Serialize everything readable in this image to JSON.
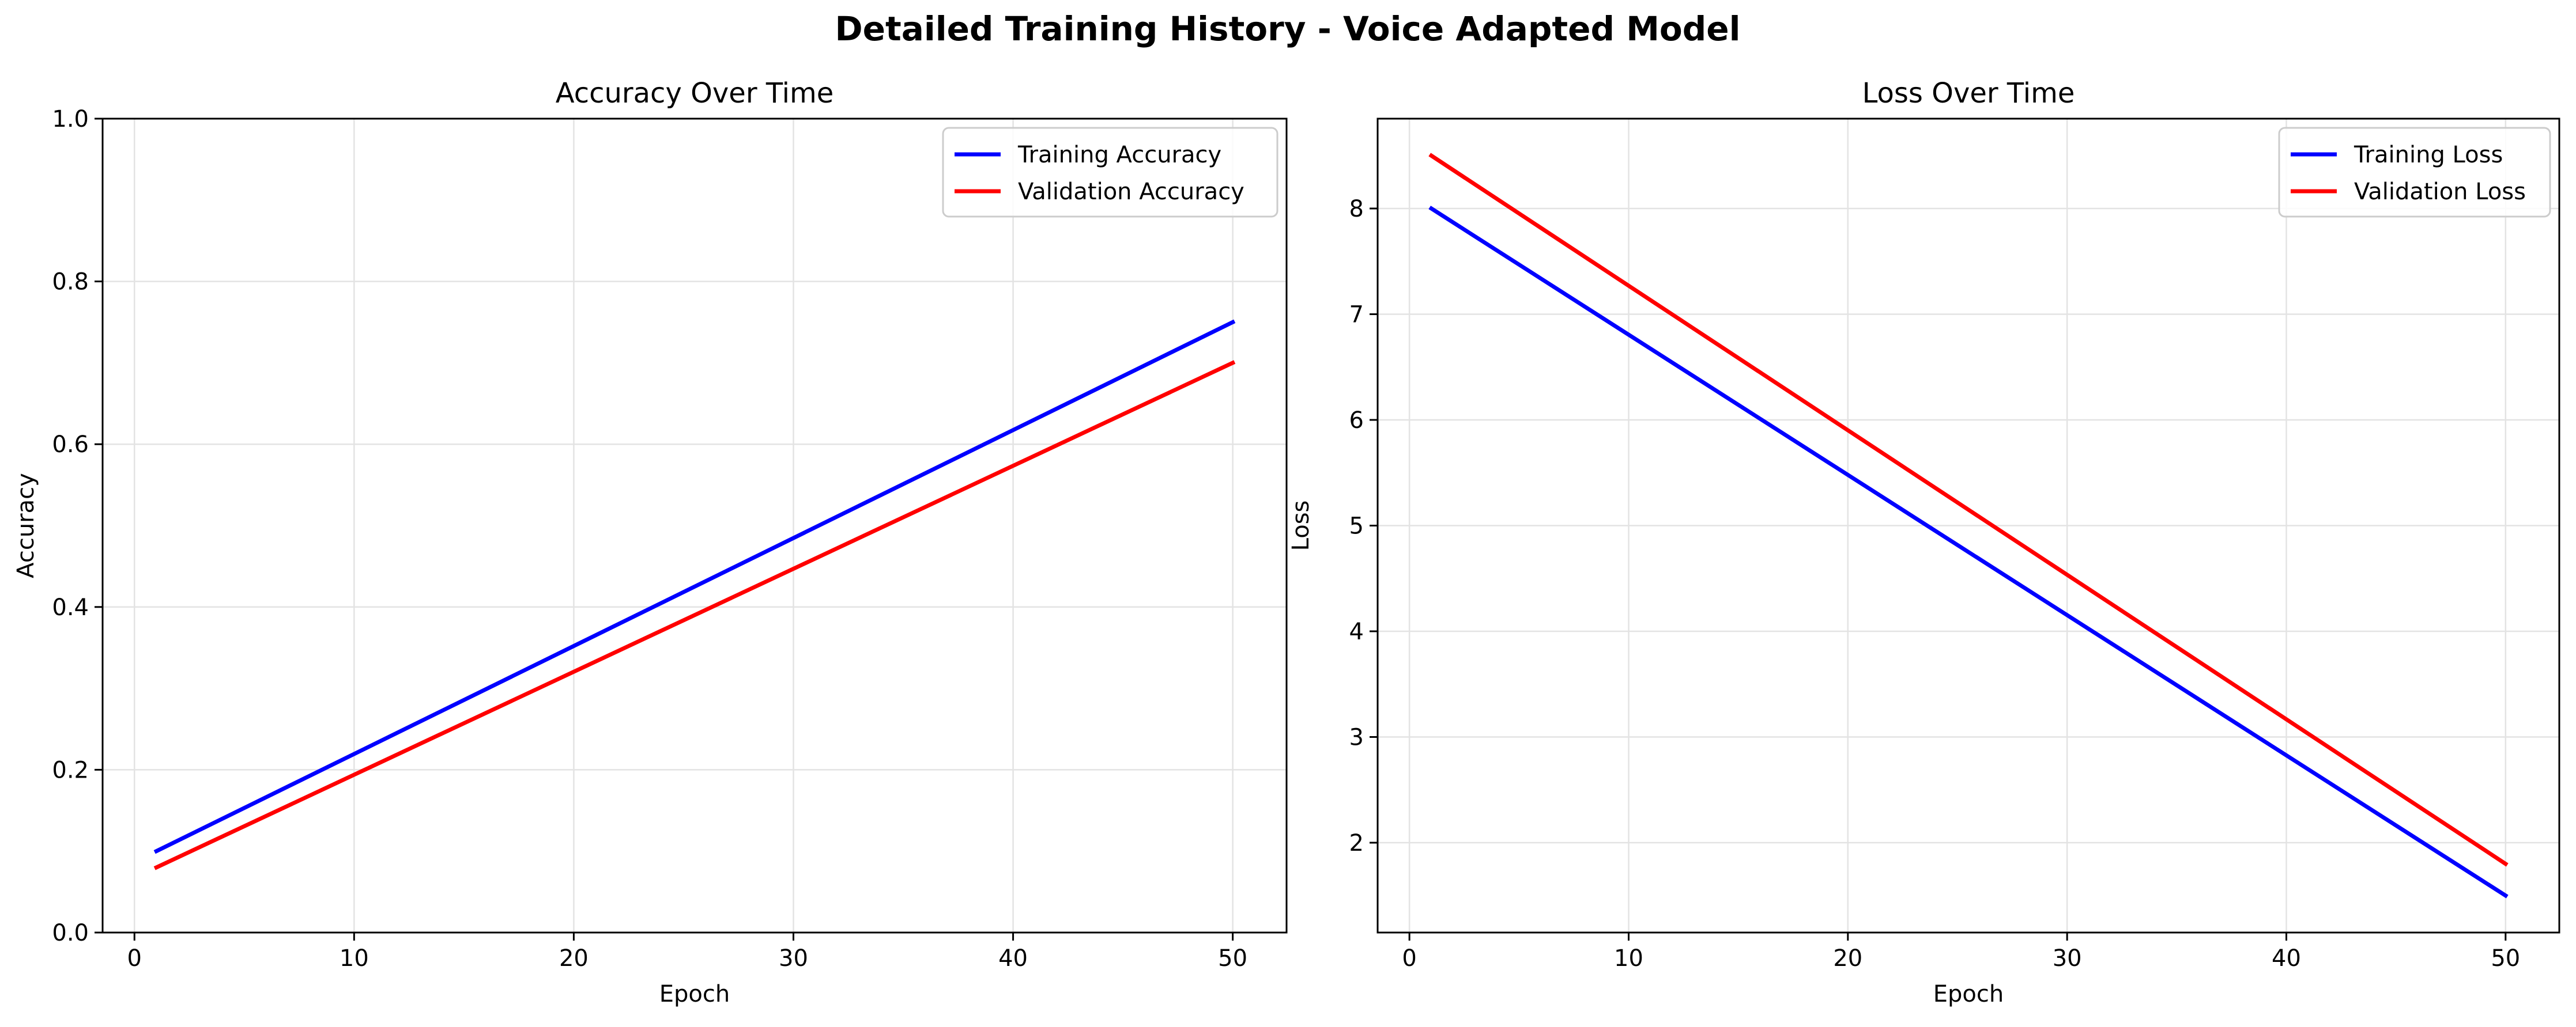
{
  "figure": {
    "suptitle": "Detailed Training History - Voice Adapted Model"
  },
  "chart_data": [
    {
      "type": "line",
      "title": "Accuracy Over Time",
      "xlabel": "Epoch",
      "ylabel": "Accuracy",
      "xlim": [
        -1.45,
        52.45
      ],
      "ylim": [
        0.0,
        1.0
      ],
      "xticks": [
        0,
        10,
        20,
        30,
        40,
        50
      ],
      "yticks": [
        0.0,
        0.2,
        0.4,
        0.6,
        0.8,
        1.0
      ],
      "ytick_labels": [
        "0.0",
        "0.2",
        "0.4",
        "0.6",
        "0.8",
        "1.0"
      ],
      "grid": true,
      "legend_position": "top-right",
      "series": [
        {
          "name": "Training Accuracy",
          "color": "#0000ff",
          "x": [
            1,
            50
          ],
          "y": [
            0.1,
            0.75
          ]
        },
        {
          "name": "Validation Accuracy",
          "color": "#ff0000",
          "x": [
            1,
            50
          ],
          "y": [
            0.08,
            0.7
          ]
        }
      ]
    },
    {
      "type": "line",
      "title": "Loss Over Time",
      "xlabel": "Epoch",
      "ylabel": "Loss",
      "xlim": [
        -1.45,
        52.45
      ],
      "ylim": [
        1.15,
        8.85
      ],
      "xticks": [
        0,
        10,
        20,
        30,
        40,
        50
      ],
      "yticks": [
        2,
        3,
        4,
        5,
        6,
        7,
        8
      ],
      "ytick_labels": [
        "2",
        "3",
        "4",
        "5",
        "6",
        "7",
        "8"
      ],
      "grid": true,
      "legend_position": "top-right",
      "series": [
        {
          "name": "Training Loss",
          "color": "#0000ff",
          "x": [
            1,
            50
          ],
          "y": [
            8.0,
            1.5
          ]
        },
        {
          "name": "Validation Loss",
          "color": "#ff0000",
          "x": [
            1,
            50
          ],
          "y": [
            8.5,
            1.8
          ]
        }
      ]
    }
  ]
}
